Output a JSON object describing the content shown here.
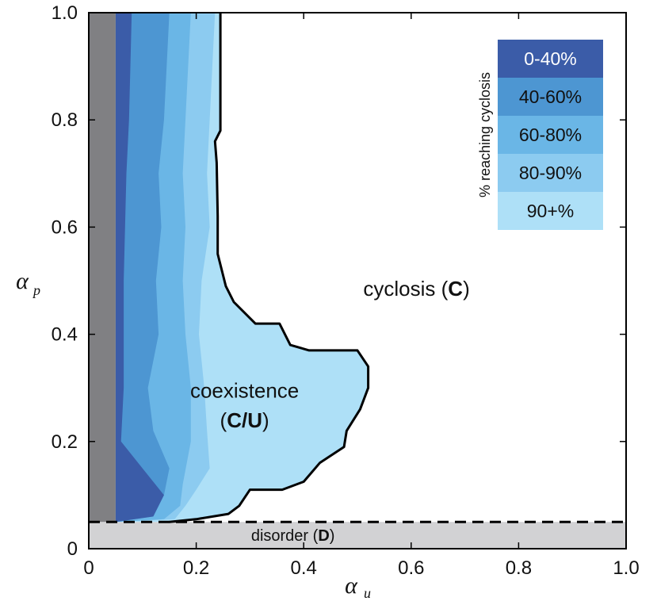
{
  "chart_data": {
    "type": "area",
    "xlabel": "α",
    "xlabel_sub": "u",
    "ylabel": "α",
    "ylabel_sub": "p",
    "xlim": [
      0,
      1.0
    ],
    "ylim": [
      0,
      1.0
    ],
    "xticks": [
      "0",
      "0.2",
      "0.4",
      "0.6",
      "0.8",
      "1.0"
    ],
    "yticks": [
      "0",
      "0.2",
      "0.4",
      "0.6",
      "0.8",
      "1.0"
    ],
    "grid": false,
    "dashed_threshold_y": 0.05,
    "colors": {
      "disorder": "#d2d2d4",
      "gray_strip": "#808083",
      "band_0_40": "#3b5ca8",
      "band_40_60": "#4d96d2",
      "band_60_80": "#6ab6e6",
      "band_80_90": "#8ccbf0",
      "band_90_plus": "#aee0f7",
      "boundary": "#000000"
    },
    "regions": {
      "disorder": {
        "prefix": "disorder (",
        "bold": "D",
        "suffix": ")"
      },
      "coexistence": {
        "line1": "coexistence",
        "prefix": "(",
        "bold": "C/U",
        "suffix": ")"
      },
      "cyclosis": {
        "prefix": "cyclosis (",
        "bold": "C",
        "suffix": ")"
      }
    },
    "legend": {
      "title": "% reaching cyclosis",
      "placement": "top-right",
      "entries": [
        {
          "label": "0-40%",
          "color": "#3b5ca8",
          "text_color": "#ffffff"
        },
        {
          "label": "40-60%",
          "color": "#4d96d2",
          "text_color": "#111111"
        },
        {
          "label": "60-80%",
          "color": "#6ab6e6",
          "text_color": "#111111"
        },
        {
          "label": "80-90%",
          "color": "#8ccbf0",
          "text_color": "#111111"
        },
        {
          "label": "90+%",
          "color": "#aee0f7",
          "text_color": "#111111"
        }
      ]
    },
    "boundaries": {
      "gray_strip_x": [
        0,
        0.05
      ],
      "band_0_40_right": [
        [
          0.05,
          1.0
        ],
        [
          0.05,
          0.1
        ],
        [
          0.1,
          0.05
        ]
      ],
      "outer_C_boundary": [
        [
          0.245,
          1.0
        ],
        [
          0.245,
          0.78
        ],
        [
          0.235,
          0.75
        ],
        [
          0.24,
          0.55
        ],
        [
          0.26,
          0.47
        ],
        [
          0.31,
          0.42
        ],
        [
          0.35,
          0.42
        ],
        [
          0.375,
          0.38
        ],
        [
          0.42,
          0.37
        ],
        [
          0.5,
          0.37
        ],
        [
          0.52,
          0.33
        ],
        [
          0.5,
          0.25
        ],
        [
          0.48,
          0.2
        ],
        [
          0.43,
          0.15
        ],
        [
          0.4,
          0.12
        ],
        [
          0.3,
          0.11
        ],
        [
          0.27,
          0.07
        ],
        [
          0.18,
          0.05
        ],
        [
          0.15,
          0.05
        ]
      ]
    }
  }
}
